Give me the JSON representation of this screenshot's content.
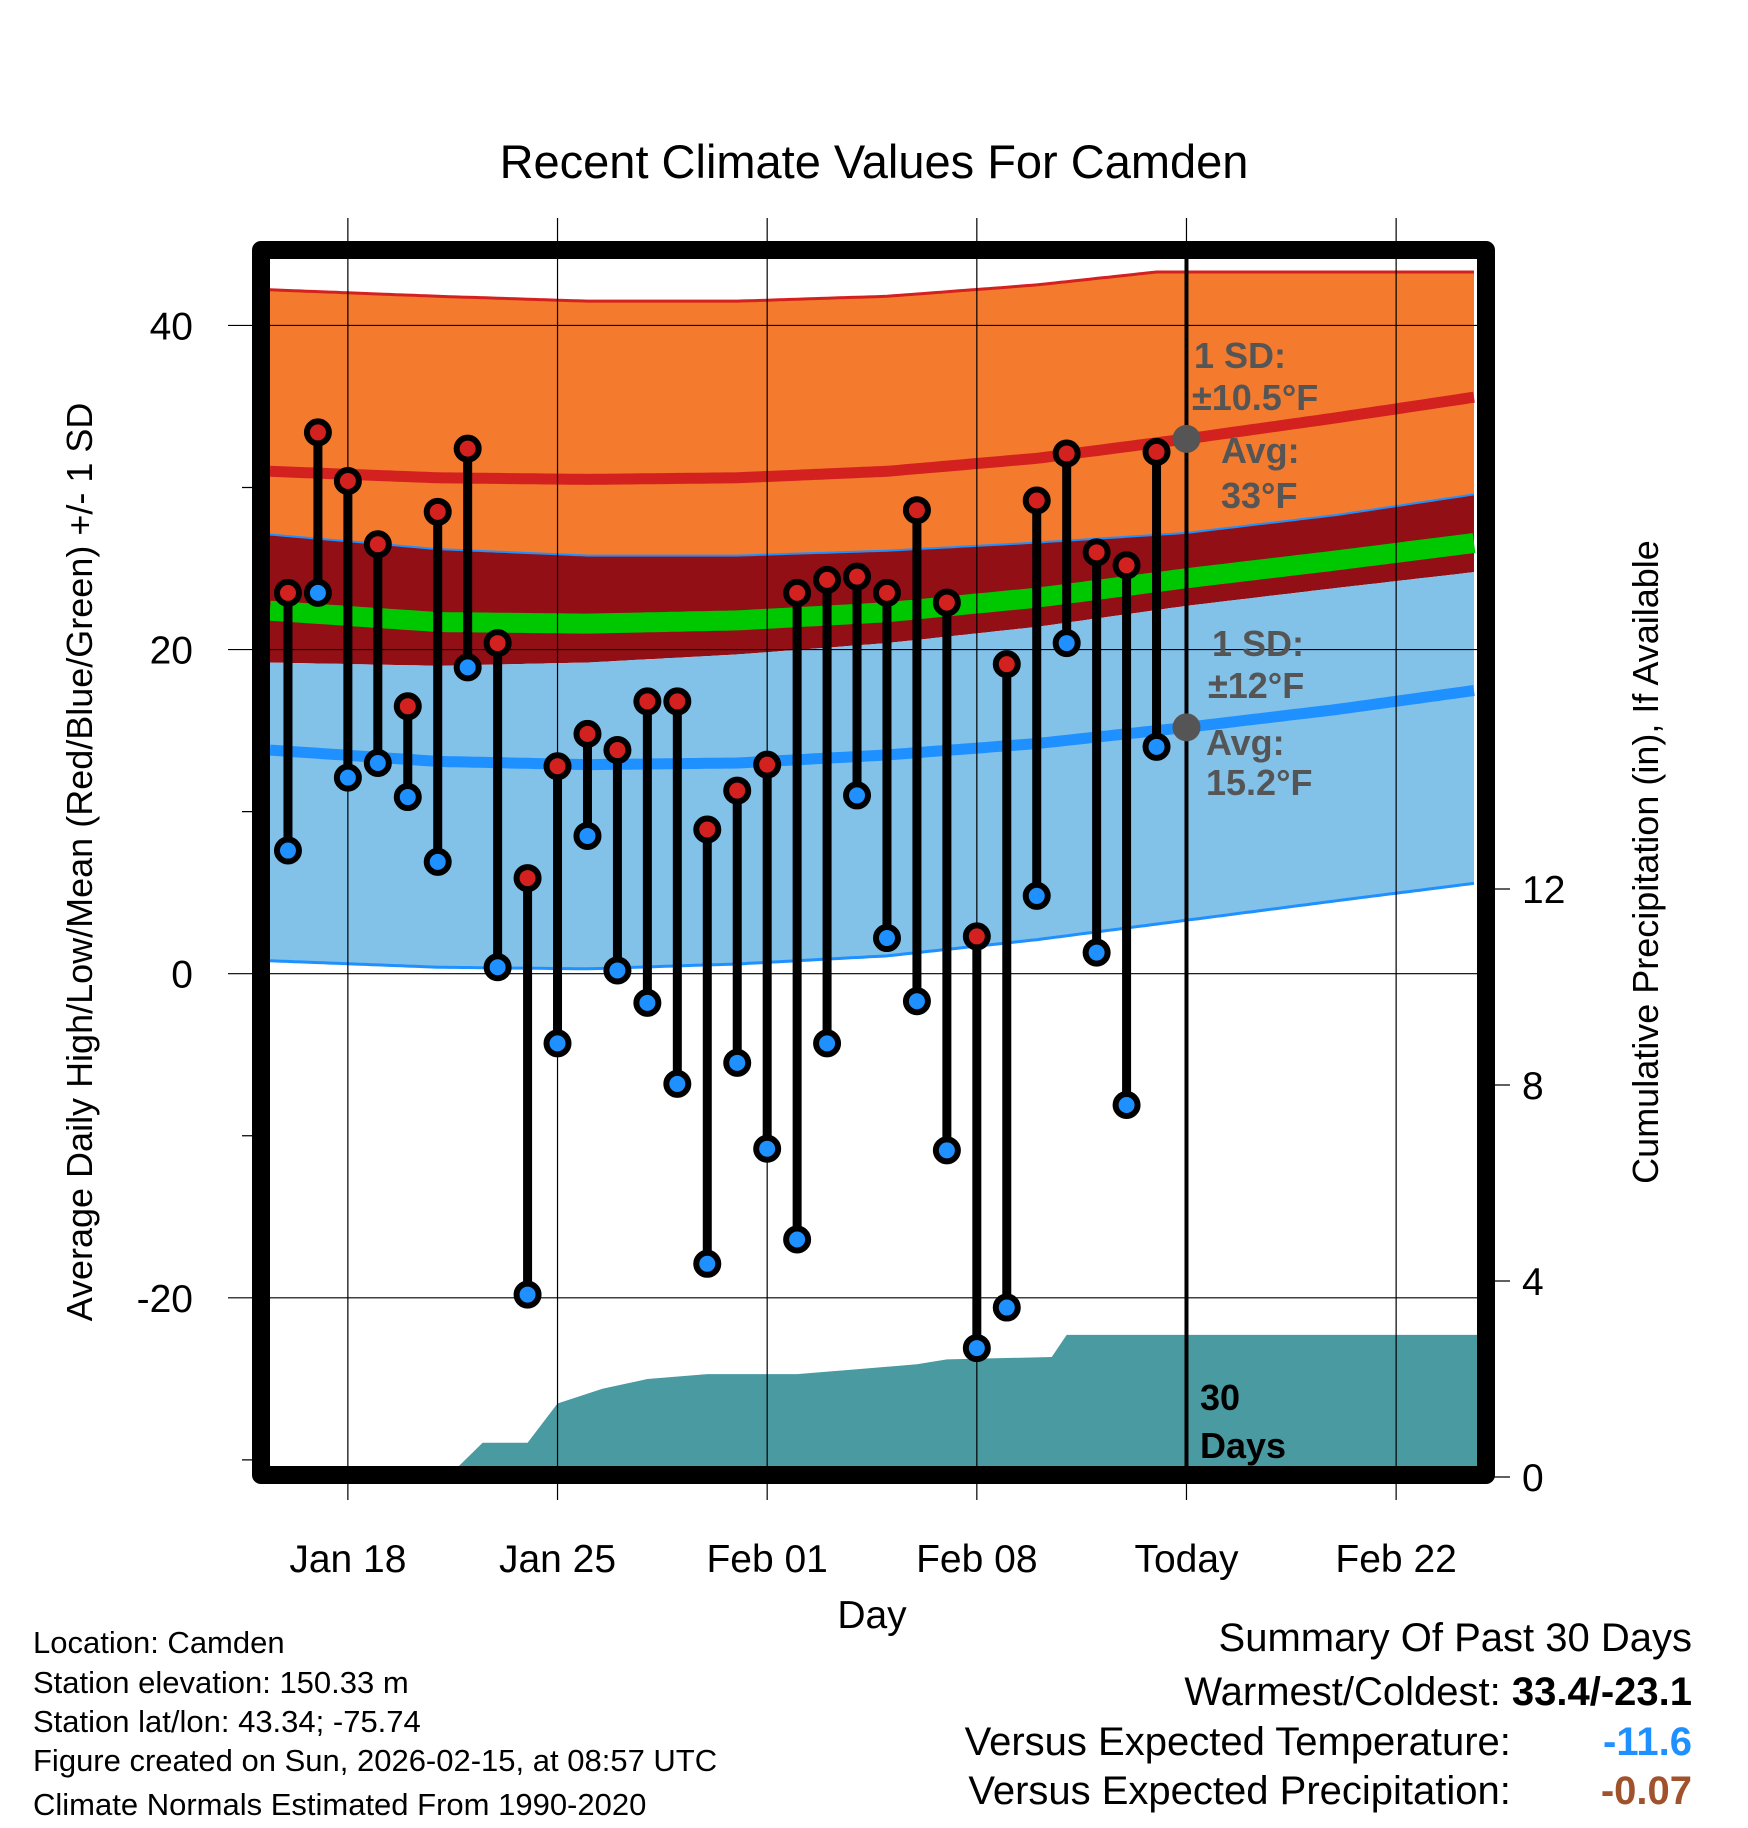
{
  "chart_data": {
    "type": "line",
    "title": "Recent Climate Values For Camden",
    "xlabel": "Day",
    "ylabel": "Average Daily High/Low/Mean (Red/Blue/Green) +/- 1 SD",
    "y2label": "Cumulative Precipitation (in), If Available",
    "x_origin": "Jan 16",
    "x_unit": "days since Jan 16",
    "xlim": [
      -0.6,
      39.7
    ],
    "ylim": [
      -30.5,
      44.1
    ],
    "y2lim": [
      0,
      15.1
    ],
    "grid": true,
    "x_ticks": [
      {
        "day": 2,
        "label": "Jan 18"
      },
      {
        "day": 9,
        "label": "Jan 25"
      },
      {
        "day": 16,
        "label": "Feb 01"
      },
      {
        "day": 23,
        "label": "Feb 08"
      },
      {
        "day": 30,
        "label": "Today"
      },
      {
        "day": 37,
        "label": "Feb 22"
      }
    ],
    "y_ticks": [
      {
        "value": 40,
        "label": "40"
      },
      {
        "value": 20,
        "label": "20"
      },
      {
        "value": 0,
        "label": "0"
      },
      {
        "value": -20,
        "label": "-20"
      }
    ],
    "y_minor_ticks": [
      30,
      10,
      -10,
      -30
    ],
    "y2_ticks": [
      {
        "value": 0,
        "label": "0"
      },
      {
        "value": 4,
        "label": "4"
      },
      {
        "value": 8,
        "label": "8"
      },
      {
        "value": 12,
        "label": "12"
      }
    ],
    "daily": {
      "dates": [
        "Jan 16",
        "Jan 17",
        "Jan 18",
        "Jan 19",
        "Jan 20",
        "Jan 21",
        "Jan 22",
        "Jan 23",
        "Jan 24",
        "Jan 25",
        "Jan 26",
        "Jan 27",
        "Jan 28",
        "Jan 29",
        "Jan 30",
        "Jan 31",
        "Feb 01",
        "Feb 02",
        "Feb 03",
        "Feb 04",
        "Feb 05",
        "Feb 06",
        "Feb 07",
        "Feb 08",
        "Feb 09",
        "Feb 10",
        "Feb 11",
        "Feb 12",
        "Feb 13",
        "Feb 14"
      ],
      "high": [
        23.5,
        33.4,
        30.4,
        26.5,
        16.5,
        28.5,
        32.4,
        20.4,
        5.9,
        12.8,
        14.8,
        13.8,
        16.8,
        16.8,
        8.9,
        11.3,
        12.9,
        23.5,
        24.3,
        24.5,
        23.5,
        28.6,
        22.9,
        2.3,
        19.1,
        29.2,
        32.1,
        26.0,
        25.2,
        32.2
      ],
      "low": [
        7.6,
        23.5,
        12.1,
        13.0,
        10.9,
        6.9,
        18.9,
        0.4,
        -19.8,
        -4.3,
        8.5,
        0.2,
        -1.8,
        -6.8,
        -17.9,
        -5.5,
        -10.8,
        -16.4,
        -4.3,
        11.0,
        2.2,
        -1.7,
        -10.9,
        -23.1,
        -20.6,
        4.8,
        20.4,
        1.3,
        -8.1,
        14.0
      ]
    },
    "normals": {
      "days": [
        -0.6,
        5,
        10,
        15,
        20,
        25,
        30,
        35,
        39.7
      ],
      "high_mean": [
        31,
        30.6,
        30.5,
        30.6,
        31,
        31.8,
        33,
        34.3,
        35.6
      ],
      "high_plus_sd": [
        42.2,
        41.8,
        41.5,
        41.5,
        41.8,
        42.5,
        43.5,
        44.5,
        45.5
      ],
      "high_minus_sd": [
        27.1,
        26.2,
        25.8,
        25.8,
        26.1,
        26.6,
        27.2,
        28.3,
        29.6
      ],
      "mean": [
        22.4,
        21.7,
        21.6,
        21.8,
        22.3,
        23.2,
        24.4,
        25.5,
        26.6
      ],
      "low_mean": [
        13.8,
        13.1,
        12.9,
        13.0,
        13.5,
        14.2,
        15.2,
        16.3,
        17.5
      ],
      "low_plus_sd": [
        19.2,
        19.0,
        19.2,
        19.7,
        20.4,
        21.4,
        22.7,
        23.8,
        24.8
      ],
      "low_minus_sd": [
        0.8,
        0.4,
        0.3,
        0.6,
        1.1,
        2.1,
        3.3,
        4.5,
        5.6
      ]
    },
    "precip_cumulative": {
      "days": [
        -0.6,
        3.8,
        5.5,
        6.5,
        8,
        9,
        10.5,
        12,
        14,
        17,
        19,
        21,
        22,
        25.5,
        26,
        39.7
      ],
      "values": [
        0,
        0,
        0.1,
        0.7,
        0.7,
        1.5,
        1.8,
        2.0,
        2.1,
        2.1,
        2.2,
        2.3,
        2.4,
        2.45,
        2.9,
        2.9
      ]
    },
    "annotations": {
      "high_sd_1": "1 SD:",
      "high_sd_2": "±10.5°F",
      "high_avg_1": "Avg:",
      "high_avg_2": "33°F",
      "low_sd_1": "1 SD:",
      "low_sd_2": "±12°F",
      "low_avg_1": "Avg:",
      "low_avg_2": "15.2°F",
      "days_1": "30",
      "days_2": "Days",
      "high_avg_value": 33,
      "low_avg_value": 15.2
    },
    "colors": {
      "orange": "#F47A2E",
      "dark_red": "#920F16",
      "green": "#00C800",
      "light_blue": "#82C1E8",
      "red": "#D3211F",
      "blue": "#1E90FF",
      "teal": "#4A9AA2",
      "note": "#555555",
      "high_dot": "#D3211F",
      "low_dot": "#1E90FF"
    }
  },
  "info": {
    "location": "Location: Camden",
    "elevation": "Station elevation: 150.33 m",
    "latlon": "Station lat/lon: 43.34; -75.74",
    "created": "Figure created on Sun, 2026-02-15, at 08:57 UTC",
    "normals": "Climate Normals Estimated From 1990-2020"
  },
  "summary": {
    "title": "Summary Of Past 30 Days",
    "warm_cold_label": "Warmest/Coldest:",
    "warm_cold_value": "33.4/-23.1",
    "temp_label": "Versus Expected Temperature:",
    "temp_value": "-11.6",
    "temp_color": "#1E90FF",
    "precip_label": "Versus Expected Precipitation:",
    "precip_value": "-0.07",
    "precip_color": "#A0522D"
  }
}
